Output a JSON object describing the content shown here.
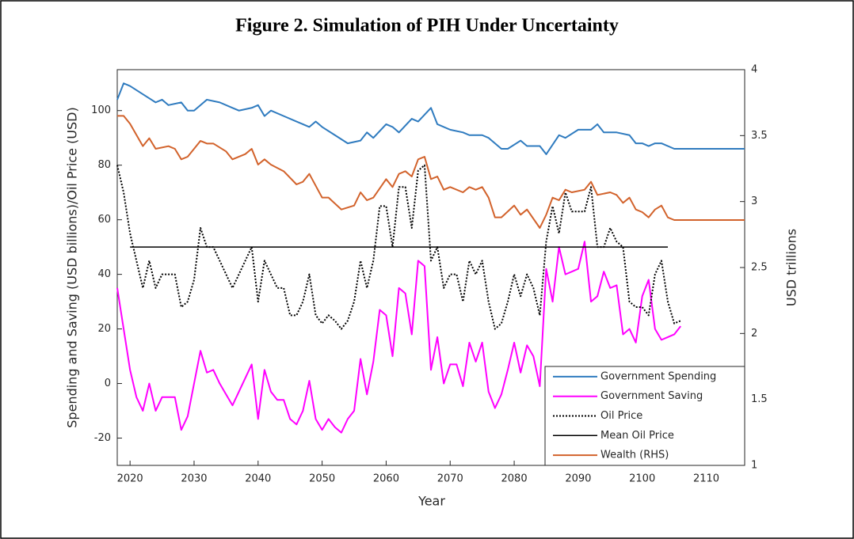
{
  "chart_data": {
    "type": "line",
    "title": "Figure 2. Simulation of PIH Under Uncertainty",
    "x_label": "Year",
    "y_label": "Spending and Saving (USD billions)/Oil Price (USD)",
    "y2_label": "USD trillions",
    "xlim": [
      2018,
      2116
    ],
    "xticks": [
      2020,
      2030,
      2040,
      2050,
      2060,
      2070,
      2080,
      2090,
      2100,
      2110
    ],
    "ylim": [
      -30,
      115
    ],
    "yticks": [
      -20,
      0,
      20,
      40,
      60,
      80,
      100
    ],
    "y2lim": [
      1,
      4
    ],
    "y2ticks": [
      1,
      1.5,
      2,
      2.5,
      3,
      3.5,
      4
    ],
    "grid": false,
    "legend": "lower right",
    "series": [
      {
        "name": "Government Spending",
        "color": "#2f7bbf",
        "style": "solid",
        "x": [
          2018,
          2019,
          2020,
          2022,
          2024,
          2025,
          2026,
          2028,
          2029,
          2030,
          2032,
          2034,
          2036,
          2037,
          2039,
          2040,
          2041,
          2042,
          2044,
          2046,
          2048,
          2049,
          2050,
          2052,
          2054,
          2056,
          2057,
          2058,
          2060,
          2061,
          2062,
          2064,
          2065,
          2067,
          2068,
          2070,
          2072,
          2073,
          2075,
          2076,
          2078,
          2079,
          2081,
          2082,
          2084,
          2085,
          2087,
          2088,
          2090,
          2092,
          2093,
          2094,
          2096,
          2098,
          2099,
          2100,
          2101,
          2102,
          2103,
          2105,
          2116
        ],
        "values": [
          104,
          110,
          109,
          106,
          103,
          104,
          102,
          103,
          100,
          100,
          104,
          103,
          101,
          100,
          101,
          102,
          98,
          100,
          98,
          96,
          94,
          96,
          94,
          91,
          88,
          89,
          92,
          90,
          95,
          94,
          92,
          97,
          96,
          101,
          95,
          93,
          92,
          91,
          91,
          90,
          86,
          86,
          89,
          87,
          87,
          84,
          91,
          90,
          93,
          93,
          95,
          92,
          92,
          91,
          88,
          88,
          87,
          88,
          88,
          86,
          86
        ]
      },
      {
        "name": "Government Saving",
        "color": "#ff00ff",
        "style": "solid",
        "x": [
          2018,
          2019,
          2020,
          2021,
          2022,
          2023,
          2024,
          2025,
          2026,
          2027,
          2028,
          2029,
          2030,
          2031,
          2032,
          2033,
          2034,
          2035,
          2036,
          2037,
          2038,
          2039,
          2040,
          2041,
          2042,
          2043,
          2044,
          2045,
          2046,
          2047,
          2048,
          2049,
          2050,
          2051,
          2052,
          2053,
          2054,
          2055,
          2056,
          2057,
          2058,
          2059,
          2060,
          2061,
          2062,
          2063,
          2064,
          2065,
          2066,
          2067,
          2068,
          2069,
          2070,
          2071,
          2072,
          2073,
          2074,
          2075,
          2076,
          2077,
          2078,
          2079,
          2080,
          2081,
          2082,
          2083,
          2084,
          2085,
          2086,
          2087,
          2088,
          2089,
          2090,
          2091,
          2092,
          2093,
          2094,
          2095,
          2096,
          2097,
          2098,
          2099,
          2100,
          2101,
          2102,
          2103,
          2104,
          2105,
          2106
        ],
        "values": [
          35,
          20,
          5,
          -5,
          -10,
          0,
          -10,
          -5,
          -5,
          -5,
          -17,
          -12,
          0,
          12,
          4,
          5,
          0,
          -4,
          -8,
          -3,
          2,
          7,
          -13,
          5,
          -3,
          -6,
          -6,
          -13,
          -15,
          -10,
          1,
          -13,
          -17,
          -13,
          -16,
          -18,
          -13,
          -10,
          9,
          -4,
          8,
          27,
          25,
          10,
          35,
          33,
          18,
          45,
          43,
          5,
          17,
          0,
          7,
          7,
          -1,
          15,
          8,
          15,
          -3,
          -9,
          -4,
          5,
          15,
          4,
          14,
          10,
          -1,
          42,
          30,
          50,
          40,
          41,
          42,
          52,
          30,
          32,
          41,
          35,
          36,
          18,
          20,
          15,
          32,
          38,
          20,
          16,
          17,
          18,
          21
        ]
      },
      {
        "name": "Oil Price",
        "color": "#000000",
        "style": "dotted",
        "x": [
          2018,
          2019,
          2020,
          2021,
          2022,
          2023,
          2024,
          2025,
          2026,
          2027,
          2028,
          2029,
          2030,
          2031,
          2032,
          2033,
          2034,
          2035,
          2036,
          2037,
          2038,
          2039,
          2040,
          2041,
          2042,
          2043,
          2044,
          2045,
          2046,
          2047,
          2048,
          2049,
          2050,
          2051,
          2052,
          2053,
          2054,
          2055,
          2056,
          2057,
          2058,
          2059,
          2060,
          2061,
          2062,
          2063,
          2064,
          2065,
          2066,
          2067,
          2068,
          2069,
          2070,
          2071,
          2072,
          2073,
          2074,
          2075,
          2076,
          2077,
          2078,
          2079,
          2080,
          2081,
          2082,
          2083,
          2084,
          2085,
          2086,
          2087,
          2088,
          2089,
          2090,
          2091,
          2092,
          2093,
          2094,
          2095,
          2096,
          2097,
          2098,
          2099,
          2100,
          2101,
          2102,
          2103,
          2104,
          2105,
          2106
        ],
        "values": [
          80,
          70,
          55,
          45,
          35,
          45,
          35,
          40,
          40,
          40,
          28,
          30,
          38,
          57,
          50,
          50,
          45,
          40,
          35,
          40,
          45,
          50,
          30,
          45,
          40,
          35,
          35,
          25,
          25,
          30,
          40,
          25,
          22,
          25,
          23,
          20,
          23,
          30,
          45,
          35,
          45,
          65,
          65,
          50,
          72,
          72,
          57,
          78,
          80,
          45,
          50,
          35,
          40,
          40,
          30,
          45,
          40,
          45,
          30,
          20,
          22,
          30,
          40,
          32,
          40,
          35,
          25,
          52,
          65,
          55,
          70,
          63,
          63,
          63,
          72,
          50,
          50,
          57,
          52,
          50,
          30,
          28,
          28,
          25,
          40,
          45,
          30,
          22,
          23
        ]
      },
      {
        "name": "Mean Oil Price",
        "color": "#000000",
        "style": "thin",
        "x": [
          2020,
          2104
        ],
        "values": [
          50,
          50
        ]
      },
      {
        "name": "Wealth (RHS)",
        "color": "#d2622b",
        "style": "solid",
        "axis": "y2",
        "x": [
          2018,
          2019,
          2020,
          2022,
          2023,
          2024,
          2026,
          2027,
          2028,
          2029,
          2031,
          2032,
          2033,
          2035,
          2036,
          2038,
          2039,
          2040,
          2041,
          2042,
          2044,
          2046,
          2047,
          2048,
          2050,
          2051,
          2053,
          2055,
          2056,
          2057,
          2058,
          2060,
          2061,
          2062,
          2063,
          2064,
          2065,
          2066,
          2067,
          2068,
          2069,
          2070,
          2072,
          2073,
          2074,
          2075,
          2076,
          2077,
          2078,
          2080,
          2081,
          2082,
          2084,
          2085,
          2086,
          2087,
          2088,
          2089,
          2091,
          2092,
          2093,
          2095,
          2096,
          2097,
          2098,
          2099,
          2100,
          2101,
          2102,
          2103,
          2104,
          2105,
          2116
        ],
        "values": [
          3.65,
          3.65,
          3.59,
          3.42,
          3.48,
          3.4,
          3.42,
          3.4,
          3.32,
          3.34,
          3.46,
          3.44,
          3.44,
          3.38,
          3.32,
          3.36,
          3.4,
          3.28,
          3.32,
          3.28,
          3.23,
          3.13,
          3.15,
          3.21,
          3.03,
          3.03,
          2.94,
          2.97,
          3.07,
          3.01,
          3.03,
          3.17,
          3.11,
          3.21,
          3.23,
          3.19,
          3.32,
          3.34,
          3.17,
          3.19,
          3.09,
          3.11,
          3.07,
          3.11,
          3.09,
          3.11,
          3.03,
          2.88,
          2.88,
          2.97,
          2.9,
          2.94,
          2.8,
          2.9,
          3.03,
          3.01,
          3.09,
          3.07,
          3.09,
          3.15,
          3.05,
          3.07,
          3.05,
          2.99,
          3.03,
          2.94,
          2.92,
          2.88,
          2.94,
          2.97,
          2.88,
          2.86,
          2.86
        ]
      }
    ]
  }
}
